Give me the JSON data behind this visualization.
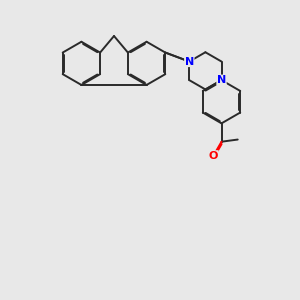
{
  "background_color": "#e8e8e8",
  "bond_color": "#2a2a2a",
  "nitrogen_color": "#0000ff",
  "oxygen_color": "#ff0000",
  "line_width": 1.4,
  "dbo": 0.035,
  "figsize": [
    3.0,
    3.0
  ],
  "dpi": 100,
  "xlim": [
    0,
    10
  ],
  "ylim": [
    0,
    10
  ]
}
